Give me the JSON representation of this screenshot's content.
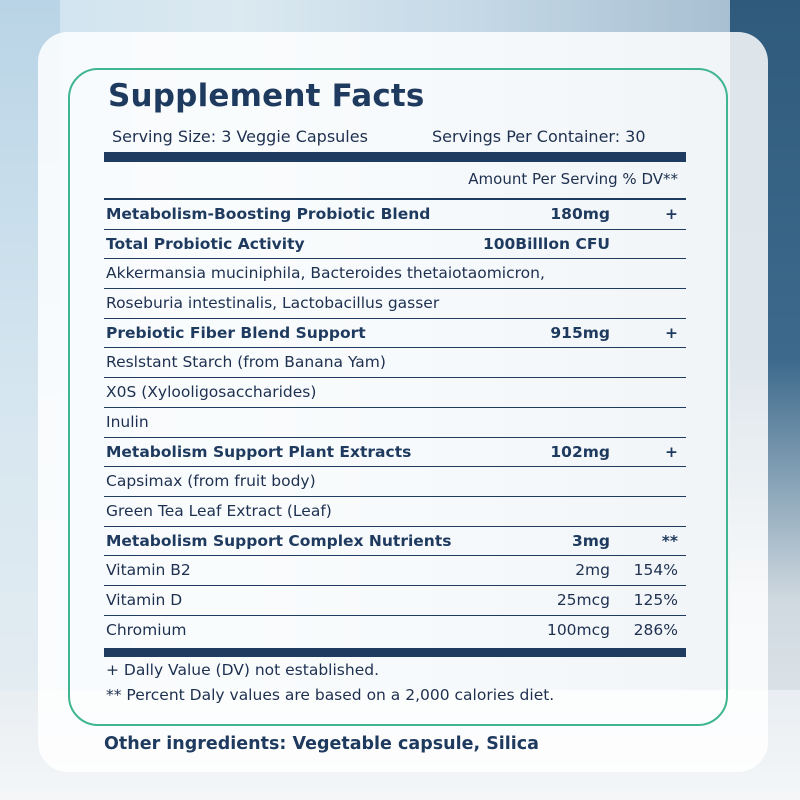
{
  "title": "Supplement Facts",
  "serving_size": "Serving Size: 3 Veggie Capsules",
  "servings_per_container": "Servings Per Container: 30",
  "amount_header": "Amount Per Serving % DV**",
  "rows": [
    {
      "name": "Metabolism-Boosting Probiotic Blend",
      "amount": "180mg",
      "dv": "+",
      "bold": true
    },
    {
      "name": "Total Probiotic Activity",
      "amount": "100Billlon CFU",
      "dv": "",
      "bold": true
    },
    {
      "name": "Akkermansia muciniphila, Bacteroides thetaiotaomicron,",
      "amount": "",
      "dv": "",
      "bold": false
    },
    {
      "name": "Roseburia intestinalis, Lactobacillus gasser",
      "amount": "",
      "dv": "",
      "bold": false
    },
    {
      "name": "Prebiotic Fiber Blend Support",
      "amount": "915mg",
      "dv": "+",
      "bold": true
    },
    {
      "name": "Reslstant Starch (from Banana Yam)",
      "amount": "",
      "dv": "",
      "bold": false
    },
    {
      "name": "X0S (Xylooligosaccharides)",
      "amount": "",
      "dv": "",
      "bold": false
    },
    {
      "name": "Inulin",
      "amount": "",
      "dv": "",
      "bold": false
    },
    {
      "name": "Metabolism Support Plant Extracts",
      "amount": "102mg",
      "dv": "+",
      "bold": true
    },
    {
      "name": "Capsimax (from fruit body)",
      "amount": "",
      "dv": "",
      "bold": false
    },
    {
      "name": "Green Tea Leaf Extract (Leaf)",
      "amount": "",
      "dv": "",
      "bold": false
    },
    {
      "name": "Metabolism Support Complex Nutrients",
      "amount": "3mg",
      "dv": "**",
      "bold": true
    },
    {
      "name": "Vitamin B2",
      "amount": "2mg",
      "dv": "154%",
      "bold": false
    },
    {
      "name": "Vitamin D",
      "amount": "25mcg",
      "dv": "125%",
      "bold": false
    },
    {
      "name": "Chromium",
      "amount": "100mcg",
      "dv": "286%",
      "bold": false
    }
  ],
  "footnote_1": "+ Dally Value (DV) not established.",
  "footnote_2": "** Percent Daly values are based on a 2,000 calories diet.",
  "other_ingredients": "Other ingredients: Vegetable capsule, Silica",
  "colors": {
    "accent": "#3fb68f",
    "navy": "#1f3b60"
  }
}
